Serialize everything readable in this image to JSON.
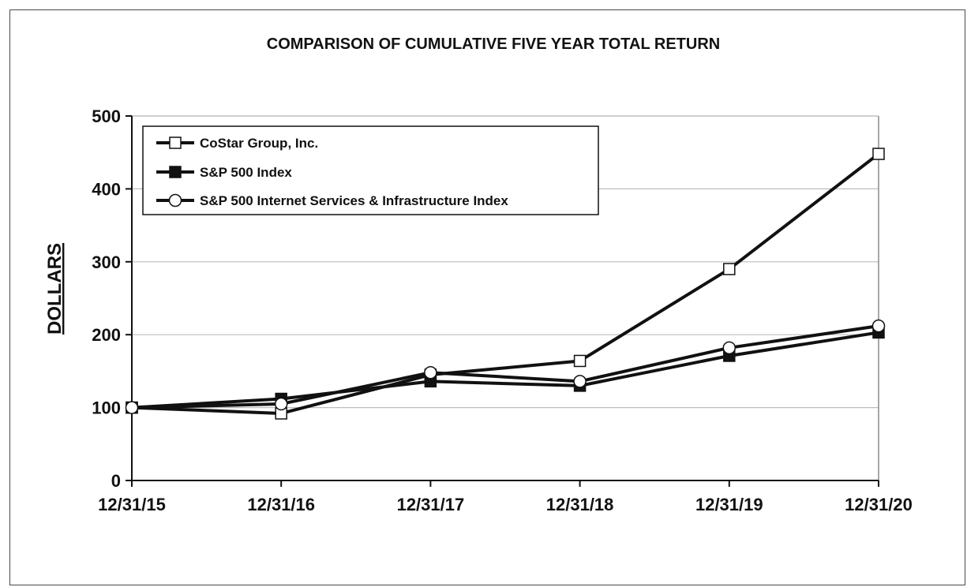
{
  "chart_data": {
    "type": "line",
    "title": "COMPARISON OF CUMULATIVE FIVE YEAR TOTAL RETURN",
    "xlabel": "",
    "ylabel": "DOLLARS",
    "categories": [
      "12/31/15",
      "12/31/16",
      "12/31/17",
      "12/31/18",
      "12/31/19",
      "12/31/20"
    ],
    "ylim": [
      0,
      500
    ],
    "yticks": [
      0,
      100,
      200,
      300,
      400,
      500
    ],
    "grid": true,
    "legend_position": "top-left",
    "series": [
      {
        "name": "CoStar Group, Inc.",
        "marker": "square-open",
        "values": [
          100,
          92,
          145,
          164,
          290,
          448
        ]
      },
      {
        "name": "S&P 500 Index",
        "marker": "square-filled",
        "values": [
          100,
          112,
          136,
          130,
          171,
          203
        ]
      },
      {
        "name": "S&P 500 Internet Services & Infrastructure Index",
        "marker": "circle-open",
        "values": [
          100,
          105,
          148,
          136,
          182,
          212
        ]
      }
    ]
  }
}
